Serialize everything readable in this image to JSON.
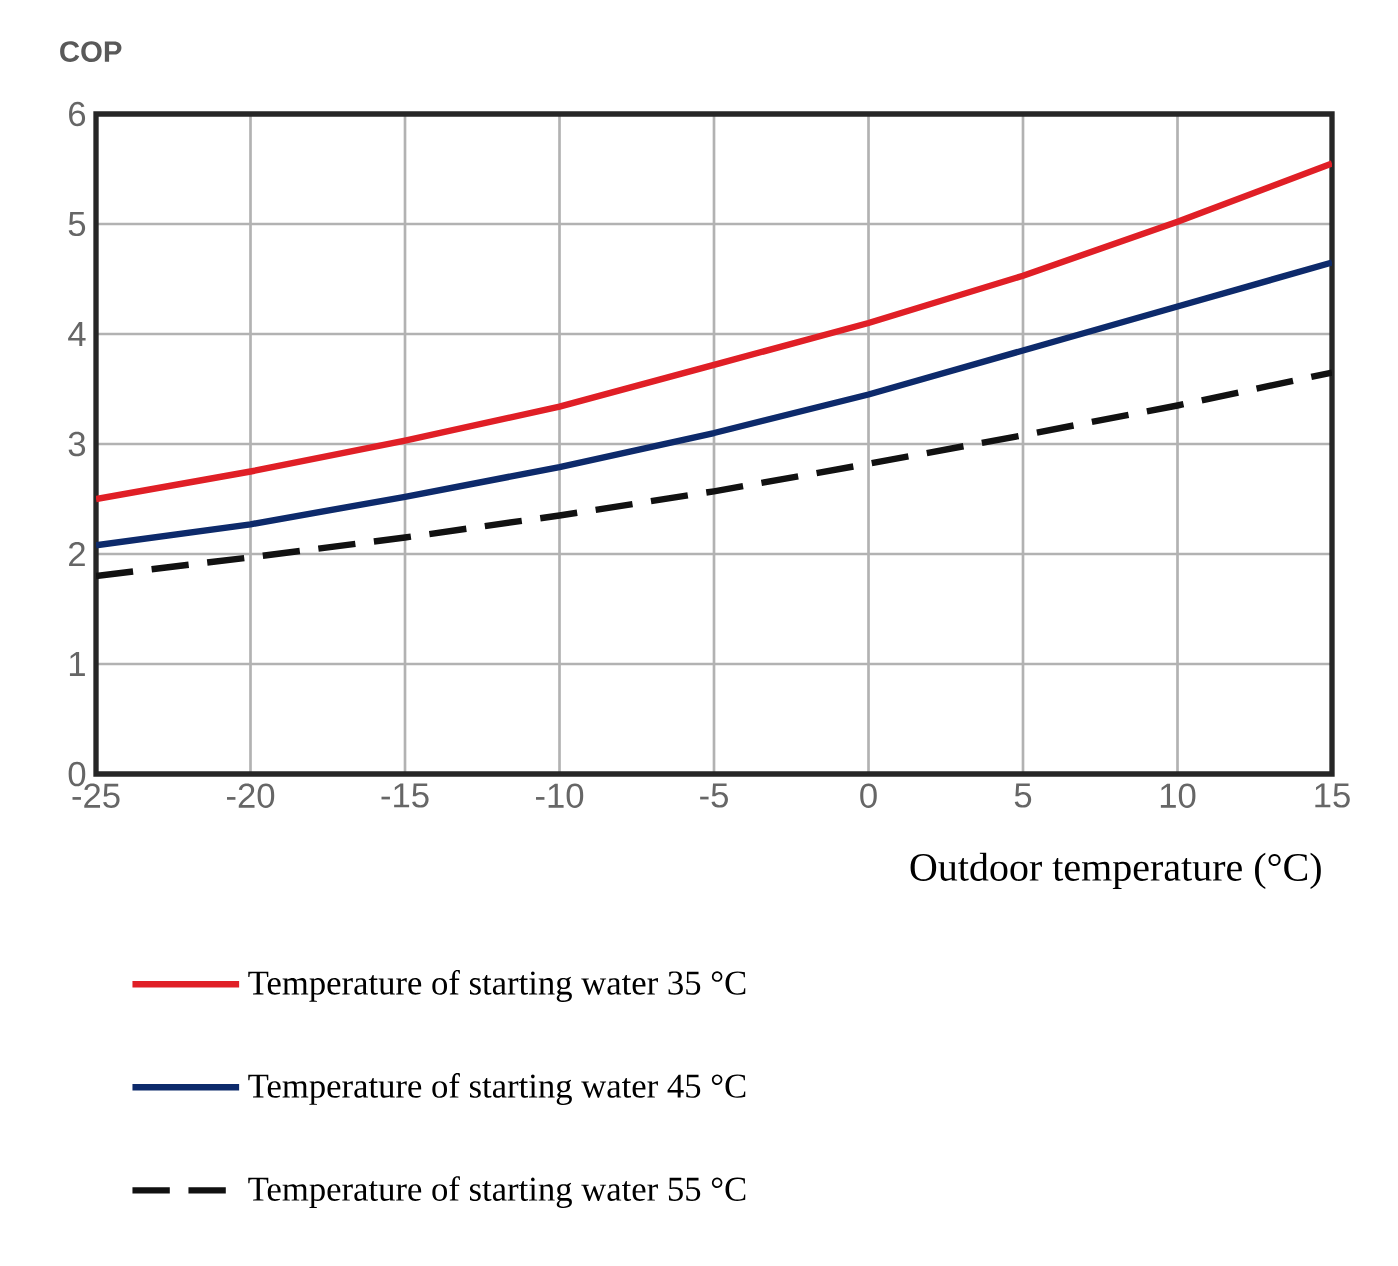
{
  "chart_data": {
    "type": "line",
    "ylabel": "COP",
    "xlabel": "Outdoor temperature (°C)",
    "x": [
      -25,
      -20,
      -15,
      -10,
      -5,
      0,
      5,
      10,
      15
    ],
    "series": [
      {
        "name": "Temperature of starting water 35 °C",
        "color": "#e01f26",
        "line_style": "solid",
        "values": [
          2.5,
          2.75,
          3.03,
          3.34,
          3.72,
          4.1,
          4.53,
          5.02,
          5.55
        ]
      },
      {
        "name": "Temperature of starting water 45 °C",
        "color": "#0d2a6b",
        "line_style": "solid",
        "values": [
          2.08,
          2.27,
          2.52,
          2.79,
          3.1,
          3.45,
          3.85,
          4.25,
          4.65
        ]
      },
      {
        "name": "Temperature of starting water 55 °C",
        "color": "#111111",
        "line_style": "dashed",
        "values": [
          1.8,
          1.97,
          2.15,
          2.35,
          2.57,
          2.82,
          3.08,
          3.35,
          3.65
        ]
      }
    ],
    "xlim": [
      -25,
      15
    ],
    "ylim": [
      0,
      6
    ],
    "xticks": [
      -25,
      -20,
      -15,
      -10,
      -5,
      0,
      5,
      10,
      15
    ],
    "yticks": [
      0,
      1,
      2,
      3,
      4,
      5,
      6
    ],
    "grid": true,
    "legend": "bottom",
    "marker": "none"
  }
}
